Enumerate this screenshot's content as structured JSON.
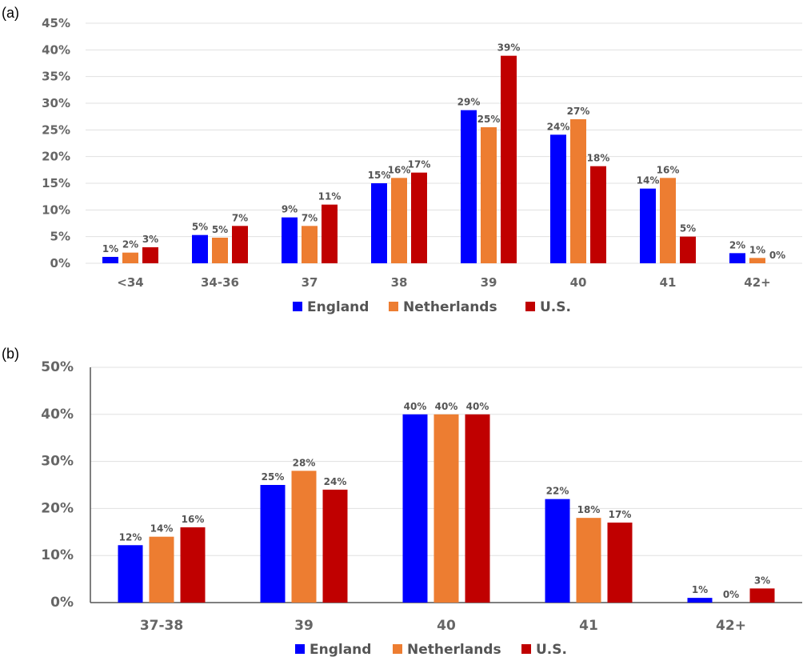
{
  "colors": {
    "England": "#0000ff",
    "Netherlands": "#ed7d31",
    "U.S.": "#c00000",
    "grid": "#e0e0e0",
    "axis": "#555555"
  },
  "chart_data": [
    {
      "type": "bar",
      "panel_label": "(a)",
      "categories": [
        "<34",
        "34-36",
        "37",
        "38",
        "39",
        "40",
        "41",
        "42+"
      ],
      "series": [
        {
          "name": "England",
          "values": [
            1.2,
            5.3,
            8.6,
            15,
            28.7,
            24.1,
            14,
            1.9
          ],
          "labels": [
            "1%",
            "5%",
            "9%",
            "15%",
            "29%",
            "24%",
            "14%",
            "2%"
          ]
        },
        {
          "name": "Netherlands",
          "values": [
            2,
            4.8,
            7,
            16,
            25.5,
            27,
            16,
            1
          ],
          "labels": [
            "2%",
            "5%",
            "7%",
            "16%",
            "25%",
            "27%",
            "16%",
            "1%"
          ]
        },
        {
          "name": "U.S.",
          "values": [
            3,
            7,
            11,
            17,
            38.9,
            18.2,
            5,
            0
          ],
          "labels": [
            "3%",
            "7%",
            "11%",
            "17%",
            "39%",
            "18%",
            "5%",
            "0%"
          ]
        }
      ],
      "yticks": [
        "0%",
        "5%",
        "10%",
        "15%",
        "20%",
        "25%",
        "30%",
        "35%",
        "40%",
        "45%"
      ],
      "ylim": [
        0,
        45
      ],
      "grid": true,
      "legend": "bottom"
    },
    {
      "type": "bar",
      "panel_label": "(b)",
      "categories": [
        "37-38",
        "39",
        "40",
        "41",
        "42+"
      ],
      "series": [
        {
          "name": "England",
          "values": [
            12.2,
            25,
            40,
            22,
            1
          ],
          "labels": [
            "12%",
            "25%",
            "40%",
            "22%",
            "1%"
          ]
        },
        {
          "name": "Netherlands",
          "values": [
            14,
            28,
            40,
            18,
            0
          ],
          "labels": [
            "14%",
            "28%",
            "40%",
            "18%",
            "0%"
          ]
        },
        {
          "name": "U.S.",
          "values": [
            16,
            24,
            40,
            17,
            3
          ],
          "labels": [
            "16%",
            "24%",
            "40%",
            "17%",
            "3%"
          ]
        }
      ],
      "yticks": [
        "0%",
        "10%",
        "20%",
        "30%",
        "40%",
        "50%"
      ],
      "ylim": [
        0,
        50
      ],
      "grid": true,
      "legend": "bottom"
    }
  ]
}
